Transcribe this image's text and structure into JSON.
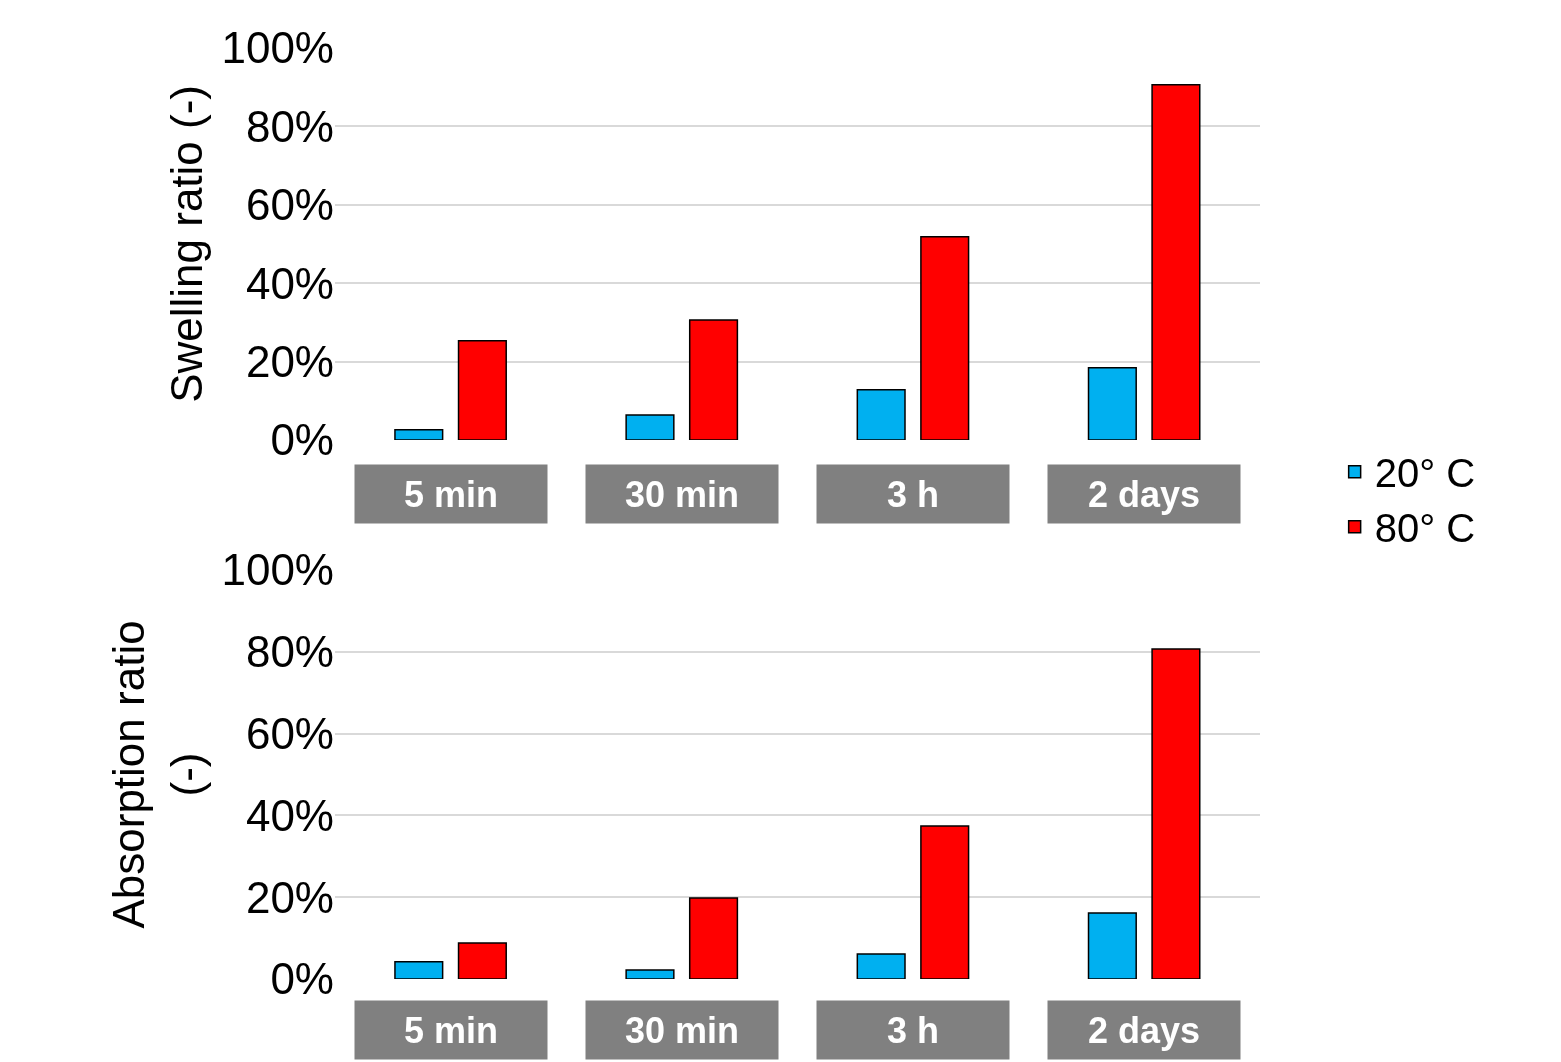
{
  "chart_data": [
    {
      "type": "bar",
      "ylabel": "Swelling ratio (-)",
      "categories": [
        "5 min",
        "30 min",
        "3 h",
        "2 days"
      ],
      "series": [
        {
          "name": "20° C",
          "color": "#00b0f0",
          "values": [
            0.026,
            0.064,
            0.128,
            0.184
          ]
        },
        {
          "name": "80° C",
          "color": "#ff0000",
          "values": [
            0.253,
            0.306,
            0.518,
            0.906
          ]
        }
      ],
      "ylim": [
        0,
        1
      ],
      "yticks": [
        {
          "value": 0,
          "label": "0%"
        },
        {
          "value": 0.2,
          "label": "20%"
        },
        {
          "value": 0.4,
          "label": "40%"
        },
        {
          "value": 0.6,
          "label": "60%"
        },
        {
          "value": 0.8,
          "label": "80%"
        },
        {
          "value": 1,
          "label": "100%"
        }
      ],
      "grid": "y",
      "legend": "right"
    },
    {
      "type": "bar",
      "ylabel": "Absorption ratio (-)",
      "categories": [
        "5 min",
        "30 min",
        "3 h",
        "2 days"
      ],
      "series": [
        {
          "color": "#00b0f0",
          "values": [
            0.042,
            0.022,
            0.061,
            0.161
          ]
        },
        {
          "color": "#ff0000",
          "values": [
            0.088,
            0.198,
            0.374,
            0.807
          ]
        }
      ],
      "ylim": [
        0,
        1
      ],
      "yticks": [
        {
          "value": 0,
          "label": "0%"
        },
        {
          "value": 0.2,
          "label": "20%"
        },
        {
          "value": 0.4,
          "label": "40%"
        },
        {
          "value": 0.6,
          "label": "60%"
        },
        {
          "value": 0.8,
          "label": "80%"
        },
        {
          "value": 1,
          "label": "100%"
        }
      ],
      "grid": "y"
    }
  ]
}
